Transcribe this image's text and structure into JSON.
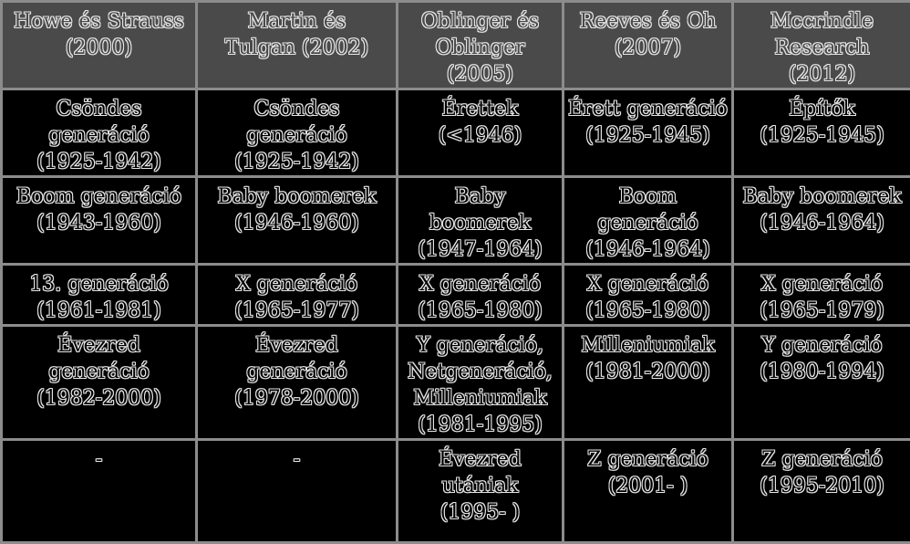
{
  "table": {
    "headers": [
      [
        "Howe és Strauss",
        "(2000)"
      ],
      [
        "Martin és",
        "Tulgan (2002)"
      ],
      [
        "Oblinger és",
        "Oblinger",
        "(2005)"
      ],
      [
        "Reeves és Oh",
        "(2007)"
      ],
      [
        "Mccrindle",
        "Research",
        "(2012)"
      ]
    ],
    "rows": [
      [
        [
          "Csöndes",
          "generáció",
          "(1925-1942)"
        ],
        [
          "Csöndes",
          "generáció",
          "(1925-1942)"
        ],
        [
          "Érettek",
          "(<1946)"
        ],
        [
          "Érett generáció",
          "(1925-1945)"
        ],
        [
          "Építők",
          "(1925-1945)"
        ]
      ],
      [
        [
          "Boom generáció",
          "(1943-1960)"
        ],
        [
          "Baby boomerek",
          "(1946-1960)"
        ],
        [
          "Baby",
          "boomerek",
          "(1947-1964)"
        ],
        [
          "Boom",
          "generáció",
          "(1946-1964)"
        ],
        [
          "Baby boomerek",
          "(1946-1964)"
        ]
      ],
      [
        [
          "13. generáció",
          "(1961-1981)"
        ],
        [
          "X generáció",
          "(1965-1977)"
        ],
        [
          "X generáció",
          "(1965-1980)"
        ],
        [
          "X generáció",
          "(1965-1980)"
        ],
        [
          "X generáció",
          "(1965-1979)"
        ]
      ],
      [
        [
          "Évezred",
          "generáció",
          "(1982-2000)"
        ],
        [
          "Évezred",
          "generáció",
          "(1978-2000)"
        ],
        [
          "Y generáció,",
          "Netgeneráció,",
          "Milleniumiak",
          "(1981-1995)"
        ],
        [
          "Milleniumiak",
          "(1981-2000)"
        ],
        [
          "Y generáció",
          "(1980-1994)"
        ]
      ],
      [
        [
          "-"
        ],
        [
          "-"
        ],
        [
          "Évezred",
          "utániak",
          "(1995- )"
        ],
        [
          "Z generáció",
          "(2001- )"
        ],
        [
          "Z generáció",
          "(1995-2010)"
        ]
      ]
    ]
  }
}
